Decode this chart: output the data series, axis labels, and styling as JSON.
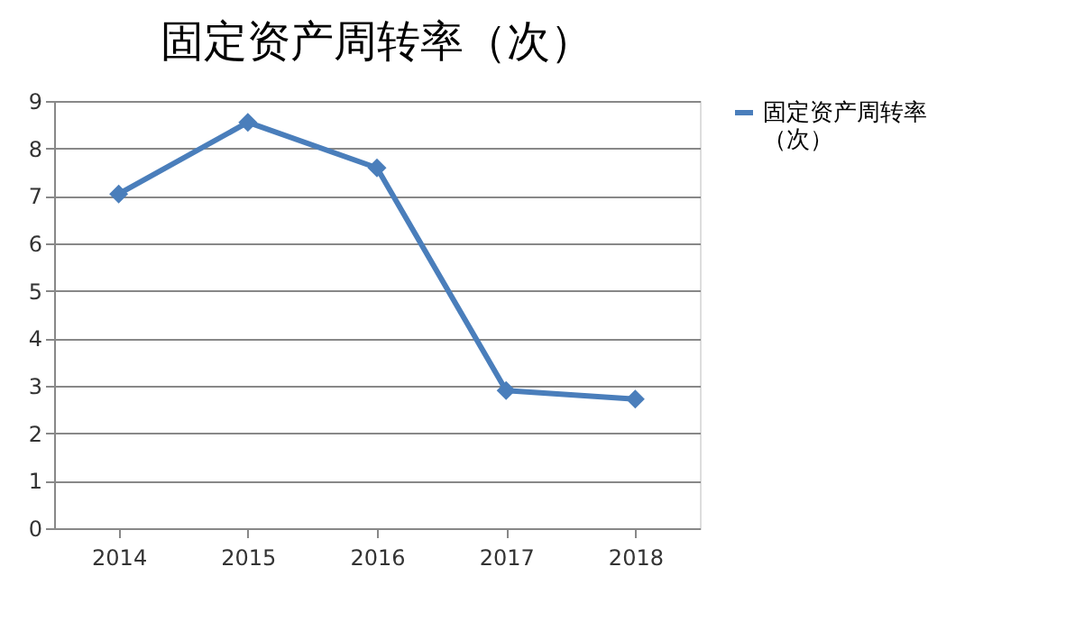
{
  "chart_data": {
    "type": "line",
    "title": "固定资产周转率（次）",
    "categories": [
      "2014",
      "2015",
      "2016",
      "2017",
      "2018"
    ],
    "series": [
      {
        "name": "固定资产周转率（次）",
        "color": "#4a7ebb",
        "values": [
          7.04,
          8.55,
          7.59,
          2.9,
          2.72
        ]
      }
    ],
    "ylim": [
      0,
      9
    ],
    "yticks": [
      0,
      1,
      2,
      3,
      4,
      5,
      6,
      7,
      8,
      9
    ],
    "grid": "y",
    "legend": "right",
    "marker": "diamond",
    "line_style": "solid"
  }
}
